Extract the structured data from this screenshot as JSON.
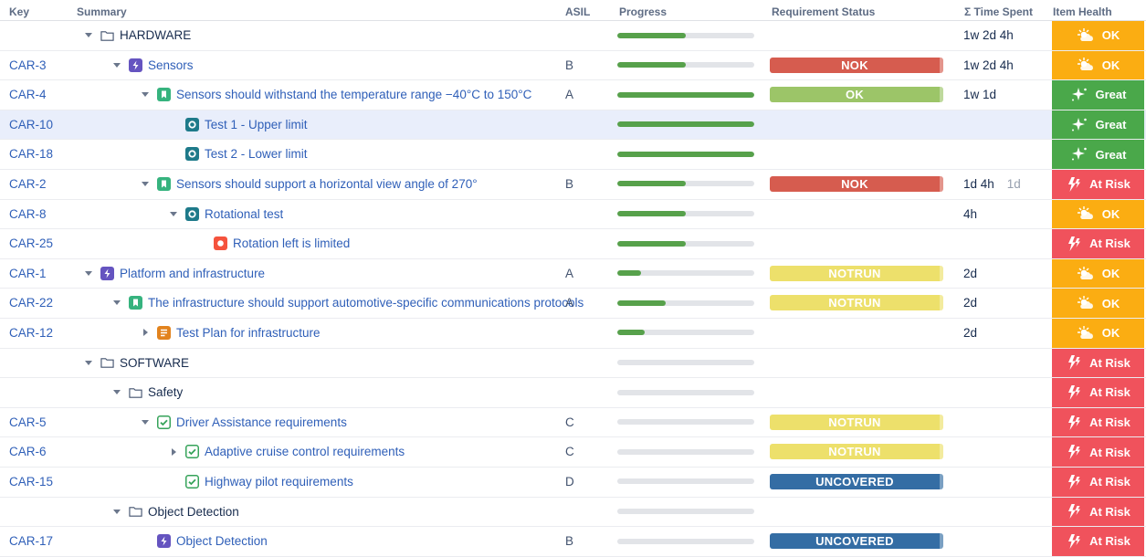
{
  "columns": {
    "key": "Key",
    "summary": "Summary",
    "asil": "ASIL",
    "progress": "Progress",
    "req_status": "Requirement Status",
    "time_spent": "Σ Time Spent",
    "item_health": "Item Health"
  },
  "colors": {
    "link": "#2f5fb8",
    "progress_fill": "#57a14b",
    "status_NOK": "#d65c4f",
    "status_OK": "#9cc568",
    "status_NOTRUN": "#ede06b",
    "status_UNCOVERED": "#346da4",
    "health_OK": "#fbad12",
    "health_Great": "#4aa84a",
    "health_At Risk": "#f0525c"
  },
  "rows": [
    {
      "key": "",
      "summary": "HARDWARE",
      "indent": 0,
      "caret": "down",
      "icon": "folder-icon",
      "asil": "",
      "progress": 0.5,
      "status": "",
      "time": "1w 2d 4h",
      "time_extra": "",
      "health": "OK",
      "link": false
    },
    {
      "key": "CAR-3",
      "summary": "Sensors",
      "indent": 1,
      "caret": "down",
      "icon": "epic-icon",
      "asil": "B",
      "progress": 0.5,
      "status": "NOK",
      "time": "1w 2d 4h",
      "time_extra": "",
      "health": "OK",
      "link": true
    },
    {
      "key": "CAR-4",
      "summary": "Sensors should withstand the temperature range −40°C to 150°C",
      "indent": 2,
      "caret": "down",
      "icon": "story-icon",
      "asil": "A",
      "progress": 1.0,
      "status": "OK",
      "time": "1w 1d",
      "time_extra": "",
      "health": "Great",
      "link": true
    },
    {
      "key": "CAR-10",
      "summary": "Test 1 - Upper limit",
      "indent": 3,
      "caret": "none",
      "icon": "test-icon",
      "asil": "",
      "progress": 1.0,
      "status": "",
      "time": "",
      "time_extra": "",
      "health": "Great",
      "link": true,
      "selected": true
    },
    {
      "key": "CAR-18",
      "summary": "Test 2 - Lower limit",
      "indent": 3,
      "caret": "none",
      "icon": "test-icon",
      "asil": "",
      "progress": 1.0,
      "status": "",
      "time": "",
      "time_extra": "",
      "health": "Great",
      "link": true
    },
    {
      "key": "CAR-2",
      "summary": "Sensors should support a horizontal view angle of 270°",
      "indent": 2,
      "caret": "down",
      "icon": "story-icon",
      "asil": "B",
      "progress": 0.5,
      "status": "NOK",
      "time": "1d 4h",
      "time_extra": "1d",
      "health": "At Risk",
      "link": true
    },
    {
      "key": "CAR-8",
      "summary": "Rotational test",
      "indent": 3,
      "caret": "down",
      "icon": "test-icon",
      "asil": "",
      "progress": 0.5,
      "status": "",
      "time": "4h",
      "time_extra": "",
      "health": "OK",
      "link": true
    },
    {
      "key": "CAR-25",
      "summary": "Rotation left is limited",
      "indent": 4,
      "caret": "none",
      "icon": "bug-icon",
      "asil": "",
      "progress": 0.5,
      "status": "",
      "time": "",
      "time_extra": "",
      "health": "At Risk",
      "link": true
    },
    {
      "key": "CAR-1",
      "summary": "Platform and infrastructure",
      "indent": 0,
      "caret": "down",
      "icon": "epic-icon",
      "asil": "A",
      "progress": 0.17,
      "status": "NOTRUN",
      "time": "2d",
      "time_extra": "",
      "health": "OK",
      "link": true
    },
    {
      "key": "CAR-22",
      "summary": "The infrastructure should support automotive-specific communications protocols",
      "indent": 1,
      "caret": "down",
      "icon": "story-icon",
      "asil": "A",
      "progress": 0.35,
      "status": "NOTRUN",
      "time": "2d",
      "time_extra": "",
      "health": "OK",
      "link": true
    },
    {
      "key": "CAR-12",
      "summary": "Test Plan for infrastructure",
      "indent": 2,
      "caret": "right",
      "icon": "testplan-icon",
      "asil": "",
      "progress": 0.2,
      "status": "",
      "time": "2d",
      "time_extra": "",
      "health": "OK",
      "link": true
    },
    {
      "key": "",
      "summary": "SOFTWARE",
      "indent": 0,
      "caret": "down",
      "icon": "folder-icon",
      "asil": "",
      "progress": 0,
      "status": "",
      "time": "",
      "time_extra": "",
      "health": "At Risk",
      "link": false
    },
    {
      "key": "",
      "summary": "Safety",
      "indent": 1,
      "caret": "down",
      "icon": "folder-icon",
      "asil": "",
      "progress": 0,
      "status": "",
      "time": "",
      "time_extra": "",
      "health": "At Risk",
      "link": false
    },
    {
      "key": "CAR-5",
      "summary": "Driver Assistance requirements",
      "indent": 2,
      "caret": "down",
      "icon": "checkbox-icon",
      "asil": "C",
      "progress": 0,
      "status": "NOTRUN",
      "time": "",
      "time_extra": "",
      "health": "At Risk",
      "link": true
    },
    {
      "key": "CAR-6",
      "summary": "Adaptive cruise control requirements",
      "indent": 3,
      "caret": "right",
      "icon": "checkbox-icon",
      "asil": "C",
      "progress": 0,
      "status": "NOTRUN",
      "time": "",
      "time_extra": "",
      "health": "At Risk",
      "link": true
    },
    {
      "key": "CAR-15",
      "summary": "Highway pilot requirements",
      "indent": 3,
      "caret": "none",
      "icon": "checkbox-icon",
      "asil": "D",
      "progress": 0,
      "status": "UNCOVERED",
      "time": "",
      "time_extra": "",
      "health": "At Risk",
      "link": true
    },
    {
      "key": "",
      "summary": "Object Detection",
      "indent": 1,
      "caret": "down",
      "icon": "folder-icon",
      "asil": "",
      "progress": 0,
      "status": "",
      "time": "",
      "time_extra": "",
      "health": "At Risk",
      "link": false
    },
    {
      "key": "CAR-17",
      "summary": "Object Detection",
      "indent": 2,
      "caret": "none",
      "icon": "epic-icon",
      "asil": "B",
      "progress": 0,
      "status": "UNCOVERED",
      "time": "",
      "time_extra": "",
      "health": "At Risk",
      "link": true
    }
  ]
}
